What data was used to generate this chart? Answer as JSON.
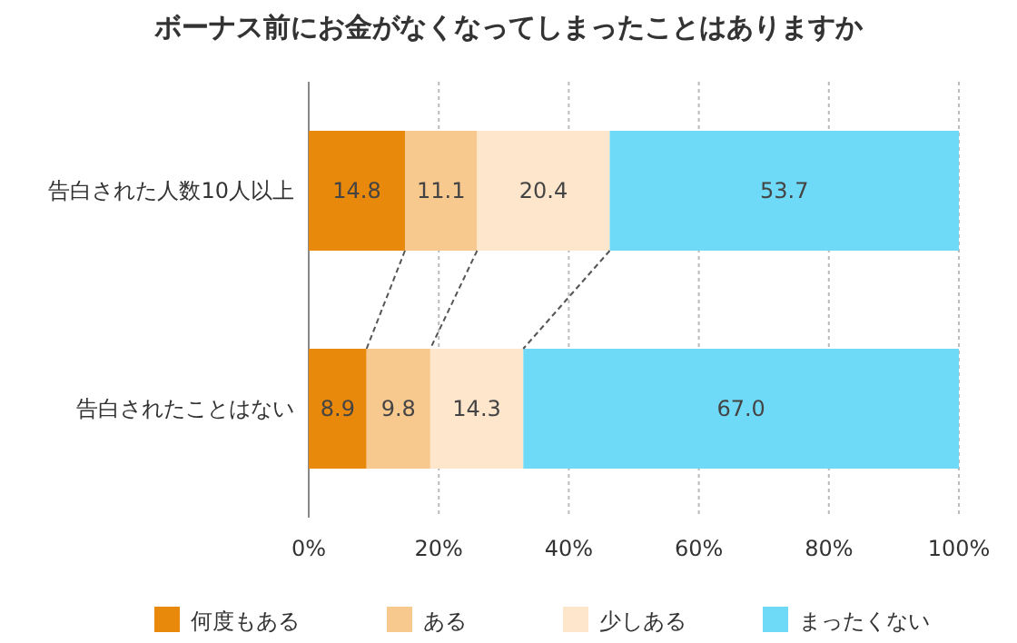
{
  "chart_data": {
    "type": "bar",
    "orientation": "horizontal",
    "stacked": true,
    "title": "ボーナス前にお金がなくなってしまったことはありますか",
    "categories": [
      "告白された人数10人以上",
      "告白されたことはない"
    ],
    "series": [
      {
        "name": "何度もある",
        "color": "#e8890c",
        "values": [
          14.8,
          8.9
        ],
        "value_labels": [
          "14.8",
          "8.9"
        ]
      },
      {
        "name": "ある",
        "color": "#f8c98f",
        "values": [
          11.1,
          9.8
        ],
        "value_labels": [
          "11.1",
          "9.8"
        ]
      },
      {
        "name": "少しある",
        "color": "#fde6cc",
        "values": [
          20.4,
          14.3
        ],
        "value_labels": [
          "20.4",
          "14.3"
        ]
      },
      {
        "name": "まったくない",
        "color": "#6fdaf8",
        "values": [
          53.7,
          67.0
        ],
        "value_labels": [
          "53.7",
          "67.0"
        ]
      }
    ],
    "xlim": [
      0,
      100
    ],
    "xticks": [
      {
        "value": 0,
        "label": "0%"
      },
      {
        "value": 20,
        "label": "20%"
      },
      {
        "value": 40,
        "label": "40%"
      },
      {
        "value": 60,
        "label": "60%"
      },
      {
        "value": 80,
        "label": "80%"
      },
      {
        "value": 100,
        "label": "100%"
      }
    ],
    "grid": "x",
    "legend": "bottom"
  }
}
